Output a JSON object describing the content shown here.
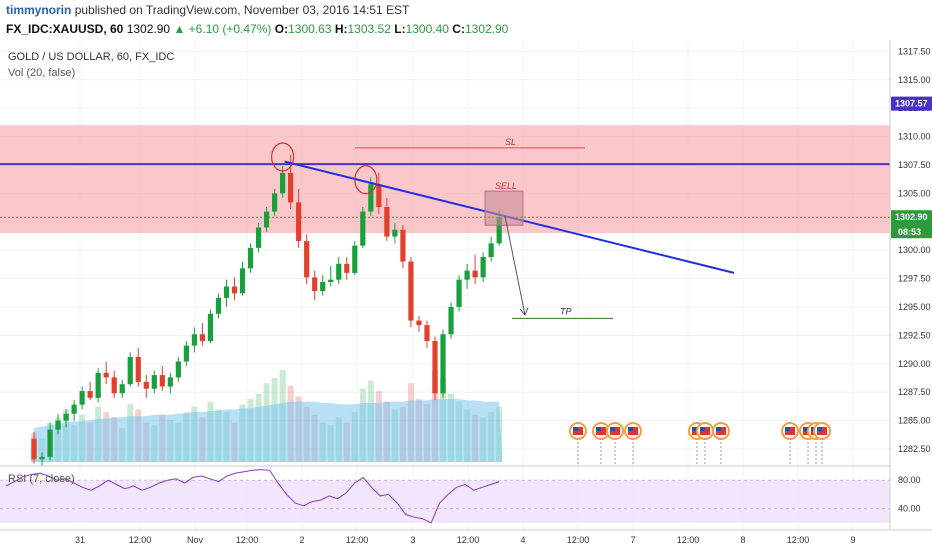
{
  "header": {
    "author": "timmynorin",
    "published": "published on TradingView.com, November 03, 2016 14:51 EST",
    "symbol": "FX_IDC:XAUUSD, 60",
    "price": "1302.90",
    "change": "+6.10 (+0.47%)",
    "open_label": "O:",
    "open": "1300.63",
    "high_label": "H:",
    "high": "1303.52",
    "low_label": "L:",
    "low": "1300.40",
    "close_label": "C:",
    "close": "1302.90"
  },
  "legend": {
    "main": "GOLD / US DOLLAR, 60, FX_IDC",
    "vol": "Vol (20, false)",
    "rsi": "RSI (7, close)"
  },
  "badges": {
    "last_price": "1302.90",
    "countdown": "08:53",
    "level": "1307.57"
  },
  "annotations": {
    "sl": "SL",
    "sell": "SELL",
    "tp": "TP"
  },
  "colors": {
    "up": "#26a69a",
    "up_fill": "#1b9e3e",
    "down": "#e0402e",
    "zone": "#f8b6b8",
    "level_line": "#4a32c8",
    "trend_line": "#1f2fe0",
    "rsi_line": "#8a3bbf",
    "rsi_band": "#efe3fb"
  },
  "chart_data": {
    "type": "candlestick",
    "title": "GOLD / US DOLLAR, 60, FX_IDC",
    "ylim": [
      1281,
      1318.5
    ],
    "yticks": [
      1317.5,
      1315.0,
      1312.5,
      1310.0,
      1307.5,
      1305.0,
      1302.5,
      1300.0,
      1297.5,
      1295.0,
      1292.5,
      1290.0,
      1287.5,
      1285.0,
      1282.5
    ],
    "xticks": [
      "31",
      "12:00",
      "Nov",
      "12:00",
      "2",
      "12:00",
      "3",
      "12:00",
      "4",
      "12:00",
      "7",
      "12:00",
      "8",
      "12:00",
      "9"
    ],
    "candles": [
      [
        1283.4,
        1284.0,
        1281.2,
        1281.6
      ],
      [
        1281.6,
        1282.2,
        1281.0,
        1281.8
      ],
      [
        1281.8,
        1284.8,
        1281.5,
        1284.2
      ],
      [
        1284.2,
        1285.6,
        1283.8,
        1285.0
      ],
      [
        1285.0,
        1286.0,
        1284.4,
        1285.6
      ],
      [
        1285.6,
        1286.8,
        1285.0,
        1286.4
      ],
      [
        1286.4,
        1288.0,
        1286.0,
        1287.6
      ],
      [
        1287.6,
        1288.4,
        1286.8,
        1287.0
      ],
      [
        1287.0,
        1289.6,
        1286.6,
        1289.2
      ],
      [
        1289.2,
        1290.2,
        1288.2,
        1288.8
      ],
      [
        1288.8,
        1289.4,
        1287.0,
        1287.4
      ],
      [
        1287.4,
        1288.6,
        1287.0,
        1288.2
      ],
      [
        1288.2,
        1291.0,
        1288.0,
        1290.6
      ],
      [
        1290.6,
        1291.4,
        1288.0,
        1288.4
      ],
      [
        1288.4,
        1289.0,
        1287.0,
        1287.8
      ],
      [
        1287.8,
        1289.4,
        1287.4,
        1289.0
      ],
      [
        1289.0,
        1289.8,
        1287.6,
        1288.0
      ],
      [
        1288.0,
        1289.2,
        1287.4,
        1288.8
      ],
      [
        1288.8,
        1290.6,
        1288.4,
        1290.2
      ],
      [
        1290.2,
        1292.0,
        1289.8,
        1291.6
      ],
      [
        1291.6,
        1293.2,
        1291.0,
        1292.6
      ],
      [
        1292.6,
        1293.6,
        1291.6,
        1292.0
      ],
      [
        1292.0,
        1294.8,
        1291.8,
        1294.4
      ],
      [
        1294.4,
        1296.2,
        1294.0,
        1295.8
      ],
      [
        1295.8,
        1297.4,
        1295.0,
        1296.8
      ],
      [
        1296.8,
        1297.6,
        1295.6,
        1296.2
      ],
      [
        1296.2,
        1299.0,
        1296.0,
        1298.4
      ],
      [
        1298.4,
        1300.6,
        1298.0,
        1300.2
      ],
      [
        1300.2,
        1302.4,
        1299.8,
        1302.0
      ],
      [
        1302.0,
        1303.8,
        1301.6,
        1303.4
      ],
      [
        1303.4,
        1305.4,
        1303.0,
        1305.0
      ],
      [
        1305.0,
        1307.4,
        1304.6,
        1306.8
      ],
      [
        1306.8,
        1308.4,
        1303.6,
        1304.2
      ],
      [
        1304.2,
        1305.4,
        1300.2,
        1300.8
      ],
      [
        1300.8,
        1301.4,
        1297.0,
        1297.6
      ],
      [
        1297.6,
        1298.2,
        1295.6,
        1296.4
      ],
      [
        1296.4,
        1297.8,
        1296.0,
        1297.2
      ],
      [
        1297.2,
        1298.6,
        1296.8,
        1297.4
      ],
      [
        1297.4,
        1299.4,
        1297.0,
        1298.8
      ],
      [
        1298.8,
        1299.4,
        1297.4,
        1298.0
      ],
      [
        1298.0,
        1300.8,
        1297.8,
        1300.4
      ],
      [
        1300.4,
        1303.8,
        1300.2,
        1303.4
      ],
      [
        1303.4,
        1306.4,
        1303.0,
        1305.8
      ],
      [
        1305.8,
        1306.8,
        1303.2,
        1303.8
      ],
      [
        1303.8,
        1304.6,
        1300.8,
        1301.2
      ],
      [
        1301.2,
        1302.4,
        1300.6,
        1301.8
      ],
      [
        1301.8,
        1302.2,
        1298.4,
        1299.0
      ],
      [
        1299.0,
        1299.4,
        1293.2,
        1293.8
      ],
      [
        1293.8,
        1294.2,
        1292.8,
        1293.4
      ],
      [
        1293.4,
        1293.8,
        1291.4,
        1292.0
      ],
      [
        1292.0,
        1292.4,
        1286.8,
        1287.4
      ],
      [
        1287.4,
        1293.0,
        1287.0,
        1292.6
      ],
      [
        1292.6,
        1295.4,
        1292.2,
        1295.0
      ],
      [
        1295.0,
        1297.8,
        1294.6,
        1297.4
      ],
      [
        1297.4,
        1298.8,
        1296.6,
        1298.2
      ],
      [
        1298.2,
        1299.6,
        1297.0,
        1297.6
      ],
      [
        1297.6,
        1299.8,
        1297.2,
        1299.4
      ],
      [
        1299.4,
        1301.2,
        1299.0,
        1300.6
      ],
      [
        1300.6,
        1303.5,
        1300.4,
        1302.9
      ]
    ],
    "volume": [
      22,
      18,
      30,
      34,
      40,
      28,
      36,
      30,
      42,
      38,
      34,
      26,
      44,
      40,
      30,
      28,
      36,
      32,
      30,
      38,
      42,
      34,
      46,
      40,
      38,
      30,
      44,
      48,
      52,
      60,
      64,
      70,
      58,
      50,
      42,
      36,
      30,
      28,
      34,
      30,
      38,
      56,
      62,
      54,
      46,
      40,
      42,
      60,
      48,
      44,
      70,
      64,
      52,
      46,
      40,
      36,
      34,
      38,
      42
    ],
    "volume_ma": [
      26,
      27,
      28,
      29,
      30,
      31,
      31,
      32,
      33,
      33,
      34,
      34,
      35,
      35,
      35,
      36,
      36,
      36,
      37,
      37,
      38,
      38,
      39,
      39,
      40,
      40,
      41,
      41,
      42,
      43,
      44,
      45,
      46,
      46,
      46,
      46,
      45,
      45,
      44,
      44,
      44,
      45,
      45,
      45,
      46,
      46,
      46,
      47,
      47,
      47,
      48,
      48,
      48,
      48,
      47,
      47,
      46,
      46,
      46
    ],
    "rsi": [
      72,
      78,
      85,
      88,
      90,
      86,
      80,
      82,
      76,
      70,
      66,
      72,
      80,
      74,
      68,
      72,
      66,
      70,
      76,
      80,
      82,
      76,
      84,
      86,
      82,
      78,
      86,
      90,
      92,
      94,
      95,
      94,
      76,
      60,
      48,
      44,
      50,
      52,
      58,
      54,
      62,
      76,
      84,
      70,
      58,
      60,
      48,
      32,
      28,
      26,
      20,
      48,
      60,
      70,
      74,
      66,
      70,
      74,
      78
    ],
    "rsi_ylim": [
      10,
      100
    ],
    "rsi_ticks": [
      80.0,
      40.0
    ],
    "levels": {
      "resistance": 1307.57,
      "zone_top": 1311.0,
      "zone_bottom": 1301.5,
      "last": 1302.9,
      "sl": 1309.0,
      "tp": 1294.0
    },
    "trendline": {
      "from": 1307.8,
      "to": 1298.0
    }
  }
}
